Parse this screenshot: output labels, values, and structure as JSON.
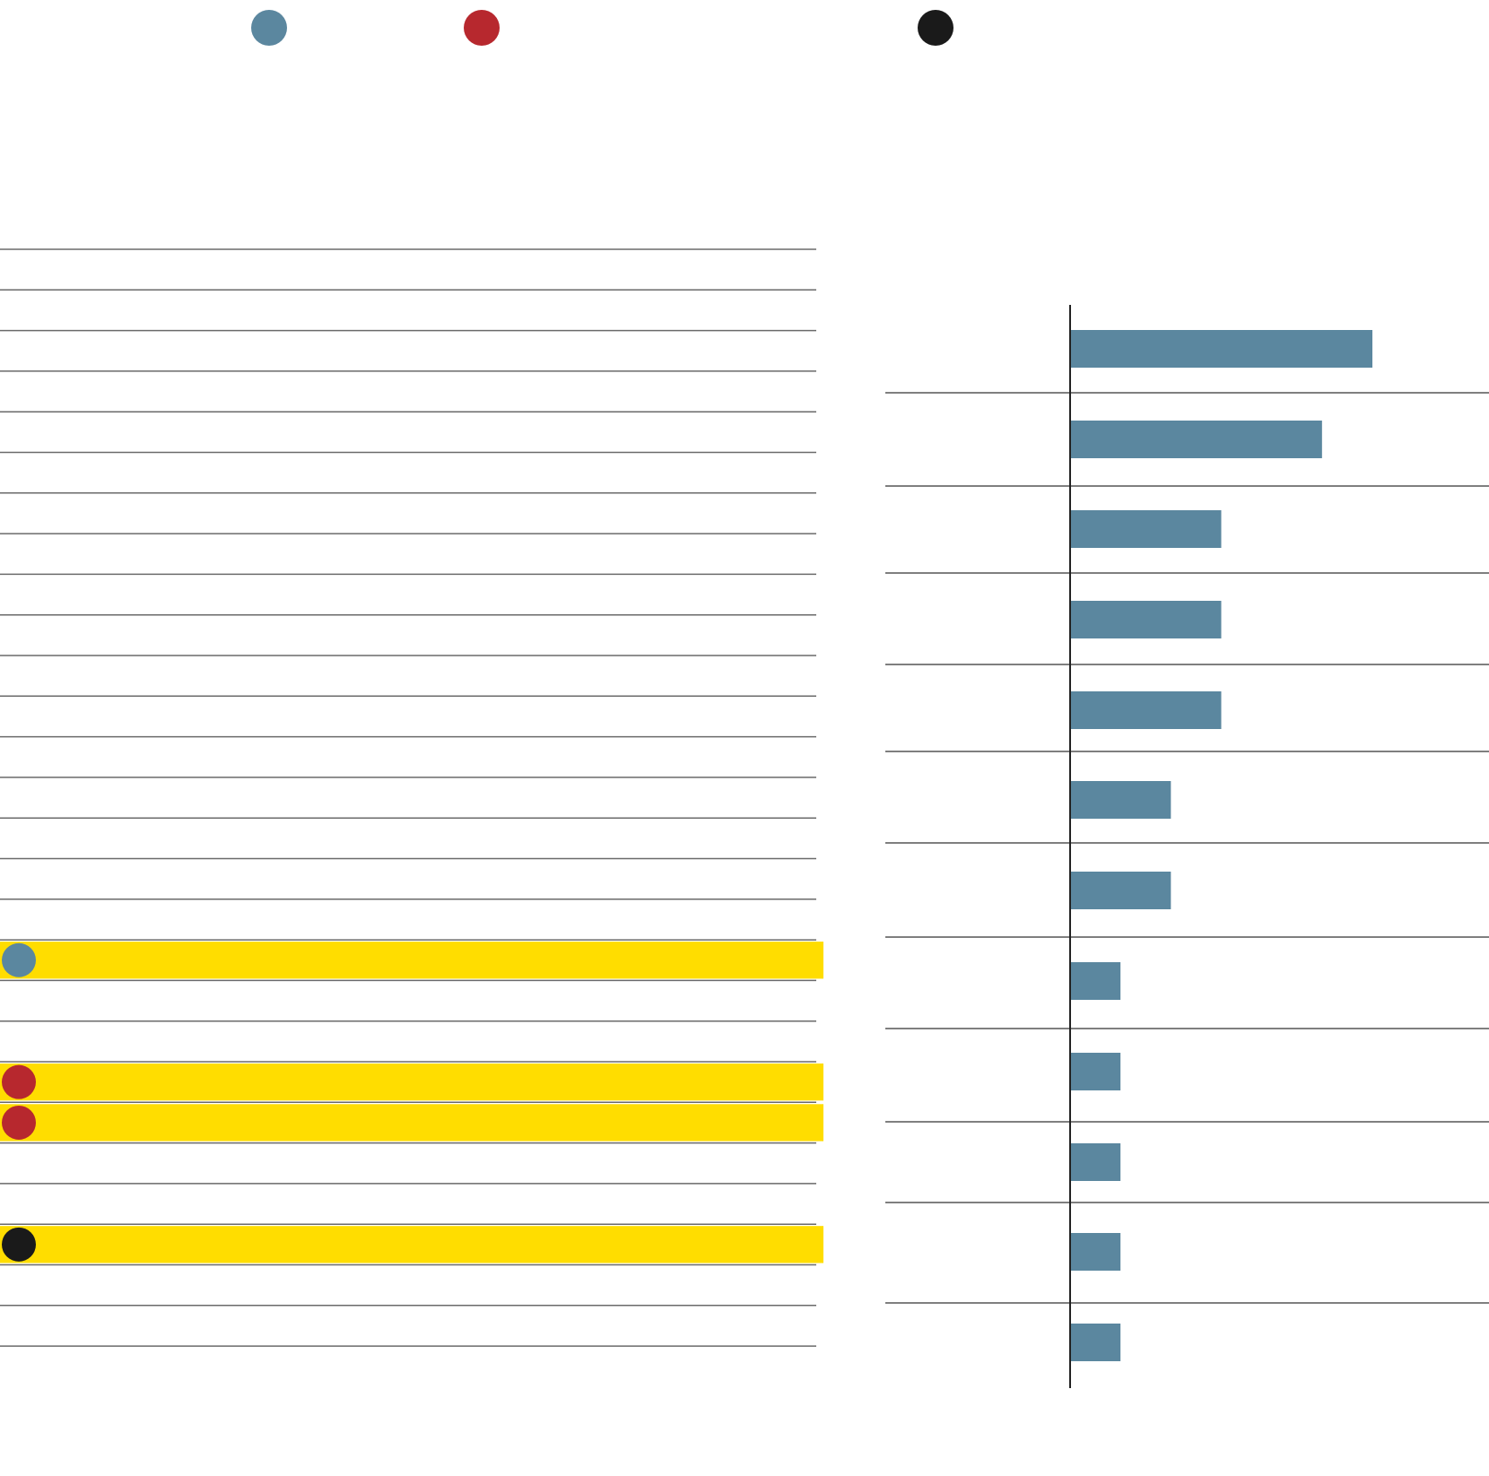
{
  "colors": {
    "blue": "#5b879f",
    "red": "#b7282e",
    "black": "#1a1a1a",
    "highlight": "#ffdd00",
    "rule": "#555555"
  },
  "legend": [
    {
      "color": "blue",
      "icon": "blue-dot-icon"
    },
    {
      "color": "red",
      "icon": "red-dot-icon"
    },
    {
      "color": "black",
      "icon": "black-dot-icon"
    }
  ],
  "table": {
    "row_count": 28,
    "highlighted_rows": [
      {
        "row": 17,
        "marker": "blue"
      },
      {
        "row": 20,
        "marker": "red"
      },
      {
        "row": 21,
        "marker": "red"
      },
      {
        "row": 24,
        "marker": "black"
      }
    ]
  },
  "chart_data": {
    "type": "bar",
    "orientation": "horizontal",
    "categories": [
      "",
      "",
      "",
      "",
      "",
      "",
      "",
      "",
      "",
      "",
      "",
      ""
    ],
    "series": [
      {
        "values": [
          6,
          5,
          3,
          3,
          3,
          2,
          2,
          1,
          1,
          1,
          1,
          1
        ]
      }
    ],
    "xlim": [
      0,
      6.6
    ],
    "grid": false
  }
}
